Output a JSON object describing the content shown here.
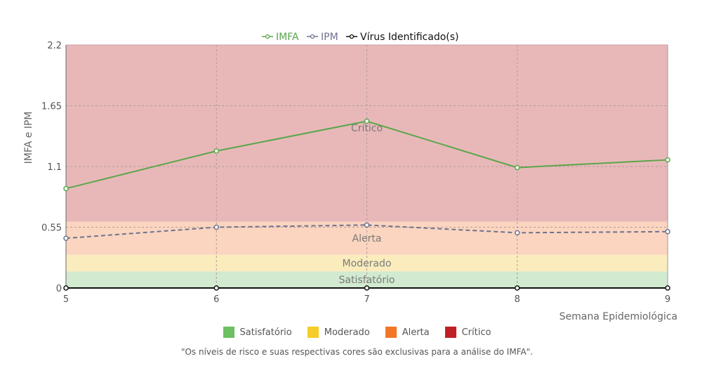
{
  "chart_data": {
    "type": "line",
    "xlabel": "Semana Epidemiológica",
    "ylabel": "IMFA e IPM",
    "x": [
      5,
      6,
      7,
      8,
      9
    ],
    "xlim": [
      5,
      9
    ],
    "ylim": [
      0,
      2.2
    ],
    "yticks": [
      0,
      0.55,
      1.1,
      1.65,
      2.2
    ],
    "grid": true,
    "legend_position": "top-center",
    "series": [
      {
        "name": "IMFA",
        "color": "#5aa64a",
        "dashed": false,
        "values": [
          0.9,
          1.24,
          1.51,
          1.09,
          1.16
        ]
      },
      {
        "name": "IPM",
        "color": "#6e7290",
        "dashed": true,
        "values": [
          0.45,
          0.55,
          0.57,
          0.5,
          0.51
        ]
      },
      {
        "name": "Vírus Identificado(s)",
        "color": "#111111",
        "dashed": false,
        "values": [
          0,
          0,
          0,
          0,
          0
        ]
      }
    ],
    "bands": [
      {
        "label": "Satisfatório",
        "from": 0,
        "to": 0.15,
        "color": "#d1ead0"
      },
      {
        "label": "Moderado",
        "from": 0.15,
        "to": 0.3,
        "color": "#fbecbd"
      },
      {
        "label": "Alerta",
        "from": 0.3,
        "to": 0.6,
        "color": "#fbd5bf"
      },
      {
        "label": "Crítico",
        "from": 0.6,
        "to": 2.2,
        "color": "#e8b8b9"
      }
    ]
  },
  "footer_legend": [
    {
      "label": "Satisfatório",
      "color": "#6cbf63"
    },
    {
      "label": "Moderado",
      "color": "#f6cc28"
    },
    {
      "label": "Alerta",
      "color": "#f37626"
    },
    {
      "label": "Crítico",
      "color": "#bf1f25"
    }
  ],
  "note": "\"Os níveis de risco e suas respectivas cores são exclusivas para a análise do IMFA\"."
}
